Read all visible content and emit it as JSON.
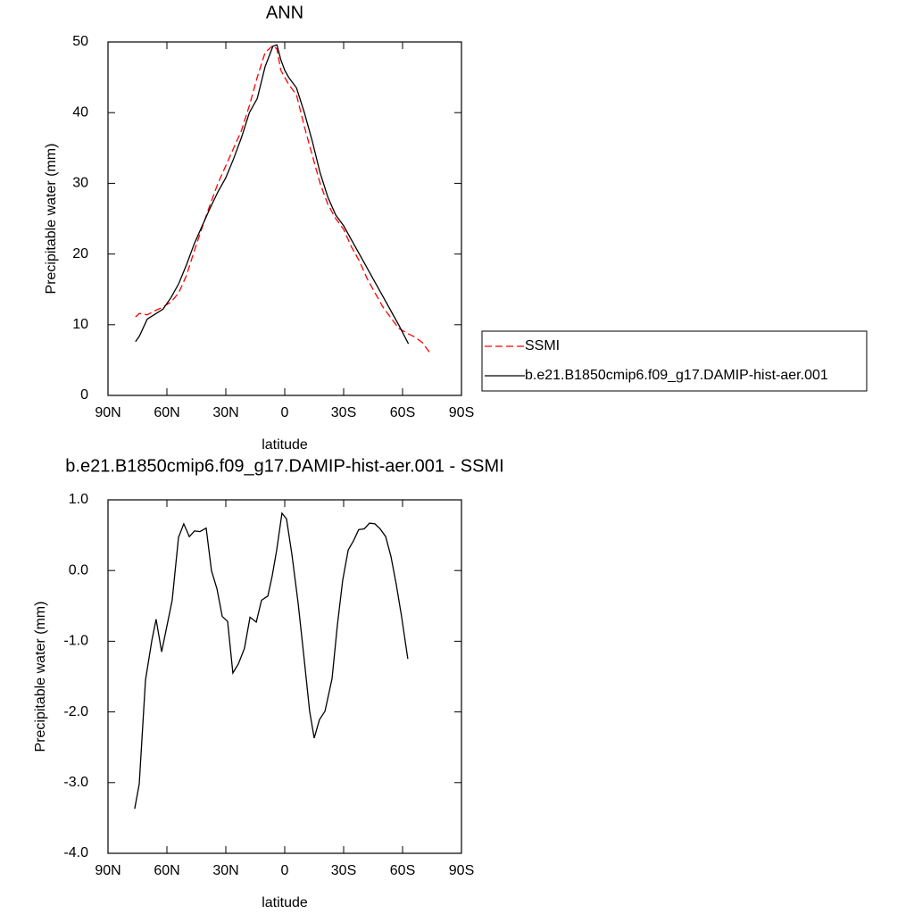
{
  "chart_data": [
    {
      "type": "line",
      "title": "ANN",
      "xlabel": "latitude",
      "ylabel": "Precipitable water (mm)",
      "xlim": [
        90,
        -90
      ],
      "xticks": [
        {
          "value": 90,
          "label": "90N"
        },
        {
          "value": 60,
          "label": "60N"
        },
        {
          "value": 30,
          "label": "30N"
        },
        0,
        {
          "value": -30,
          "label": "30S"
        },
        {
          "value": -60,
          "label": "60S"
        },
        {
          "value": -90,
          "label": "90S"
        }
      ],
      "ylim": [
        0,
        50
      ],
      "yticks": [
        0,
        10,
        20,
        30,
        40,
        50
      ],
      "legend": "right",
      "x": [
        76,
        74,
        70,
        66,
        62,
        58,
        54,
        50,
        46,
        42,
        38,
        34,
        30,
        26,
        22,
        18,
        14,
        10,
        6,
        4,
        2,
        0,
        -2,
        -6,
        -10,
        -14,
        -18,
        -22,
        -26,
        -30,
        -34,
        -38,
        -42,
        -46,
        -50,
        -54,
        -58,
        -63,
        -66,
        -70,
        -74
      ],
      "series": [
        {
          "name": "SSMI",
          "color": "#ff0000",
          "linestyle": "dashed",
          "values": [
            11.1,
            11.6,
            11.4,
            12.0,
            12.5,
            13.2,
            14.5,
            17.0,
            20.5,
            23.8,
            27.0,
            30.0,
            32.5,
            35.0,
            37.5,
            41.0,
            45.0,
            48.5,
            49.5,
            49.0,
            46.0,
            45.0,
            44.0,
            42.5,
            38.0,
            34.0,
            30.0,
            27.0,
            25.0,
            23.5,
            21.0,
            19.0,
            16.5,
            14.5,
            12.5,
            11.0,
            9.5,
            8.7,
            8.3,
            7.5,
            6.0
          ]
        },
        {
          "name": "b.e21.B1850cmip6.f09_g17.DAMIP-hist-aer.001",
          "color": "#000000",
          "linestyle": "solid",
          "values": [
            7.6,
            8.4,
            10.8,
            11.5,
            12.2,
            13.8,
            15.8,
            18.5,
            21.5,
            24.0,
            26.5,
            28.8,
            30.8,
            33.5,
            36.5,
            40.0,
            42.0,
            46.5,
            49.4,
            49.6,
            47.5,
            46.0,
            45.0,
            43.5,
            40.0,
            36.0,
            31.5,
            28.0,
            25.5,
            24.0,
            22.0,
            20.0,
            18.0,
            16.0,
            14.0,
            12.0,
            10.0,
            7.3,
            null,
            null,
            null
          ]
        }
      ]
    },
    {
      "type": "line",
      "title": "b.e21.B1850cmip6.f09_g17.DAMIP-hist-aer.001 - SSMI",
      "xlabel": "latitude",
      "ylabel": "Precipitable water (mm)",
      "xlim": [
        90,
        -90
      ],
      "xticks": [
        {
          "value": 90,
          "label": "90N"
        },
        {
          "value": 60,
          "label": "60N"
        },
        {
          "value": 30,
          "label": "30N"
        },
        0,
        {
          "value": -30,
          "label": "30S"
        },
        {
          "value": -60,
          "label": "60S"
        },
        {
          "value": -90,
          "label": "90S"
        }
      ],
      "ylim": [
        -4,
        1
      ],
      "yticks": [
        {
          "value": -4,
          "label": "-4.0"
        },
        {
          "value": -3,
          "label": "-3.0"
        },
        {
          "value": -2,
          "label": "-2.0"
        },
        {
          "value": -1,
          "label": "-1.0"
        },
        {
          "value": 0,
          "label": "0.0"
        },
        {
          "value": 1,
          "label": "1.0"
        }
      ],
      "color": "#000000",
      "x": [
        76.4,
        74.1,
        70.9,
        67.7,
        65.5,
        62.7,
        57.3,
        54.1,
        51.4,
        48.6,
        45.9,
        43.2,
        40.0,
        37.3,
        34.5,
        31.8,
        29.1,
        26.4,
        23.6,
        20.5,
        17.7,
        14.5,
        11.8,
        8.6,
        6.4,
        4.1,
        1.4,
        -0.9,
        -3.6,
        -6.8,
        -10.0,
        -12.7,
        -15.0,
        -17.7,
        -20.5,
        -24.1,
        -26.8,
        -29.5,
        -32.3,
        -35.0,
        -37.7,
        -40.5,
        -43.2,
        -45.9,
        -48.6,
        -51.4,
        -54.1,
        -56.8,
        -59.5,
        -62.7
      ],
      "values": [
        -3.37,
        -3.02,
        -1.55,
        -0.99,
        -0.69,
        -1.15,
        -0.42,
        0.47,
        0.66,
        0.48,
        0.56,
        0.55,
        0.6,
        0.0,
        -0.26,
        -0.65,
        -0.72,
        -1.45,
        -1.32,
        -1.1,
        -0.66,
        -0.73,
        -0.42,
        -0.36,
        -0.08,
        0.29,
        0.81,
        0.73,
        0.24,
        -0.46,
        -1.28,
        -1.99,
        -2.37,
        -2.11,
        -1.99,
        -1.53,
        -0.77,
        -0.14,
        0.29,
        0.42,
        0.58,
        0.59,
        0.67,
        0.66,
        0.59,
        0.48,
        0.2,
        -0.2,
        -0.65,
        -1.25
      ]
    }
  ]
}
